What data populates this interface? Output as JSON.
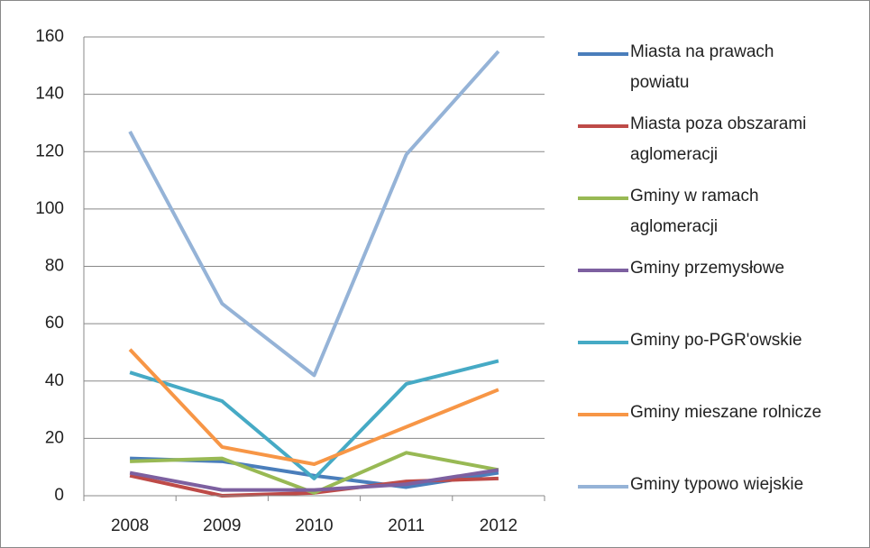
{
  "chart_data": {
    "type": "line",
    "categories": [
      "2008",
      "2009",
      "2010",
      "2011",
      "2012"
    ],
    "series": [
      {
        "name": "Miasta na prawach powiatu",
        "color": "#4a7ebb",
        "values": [
          13,
          12,
          7,
          3,
          8
        ]
      },
      {
        "name": "Miasta poza obszarami aglomeracji",
        "color": "#be4b48",
        "values": [
          7,
          0,
          1,
          5,
          6
        ]
      },
      {
        "name": "Gminy w ramach aglomeracji",
        "color": "#98b954",
        "values": [
          12,
          13,
          1,
          15,
          9
        ]
      },
      {
        "name": "Gminy przemysłowe",
        "color": "#7d60a0",
        "values": [
          8,
          2,
          2,
          4,
          9
        ]
      },
      {
        "name": "Gminy po-PGR'owskie",
        "color": "#46aac5",
        "values": [
          43,
          33,
          6,
          39,
          47
        ]
      },
      {
        "name": "Gminy mieszane rolnicze",
        "color": "#f79646",
        "values": [
          51,
          17,
          11,
          24,
          37
        ]
      },
      {
        "name": "Gminy typowo wiejskie",
        "color": "#95b3d7",
        "values": [
          127,
          67,
          42,
          119,
          155
        ]
      }
    ],
    "ylim": [
      0,
      160
    ],
    "yticks": [
      0,
      20,
      40,
      60,
      80,
      100,
      120,
      140,
      160
    ],
    "grid": true,
    "legend": "right"
  }
}
